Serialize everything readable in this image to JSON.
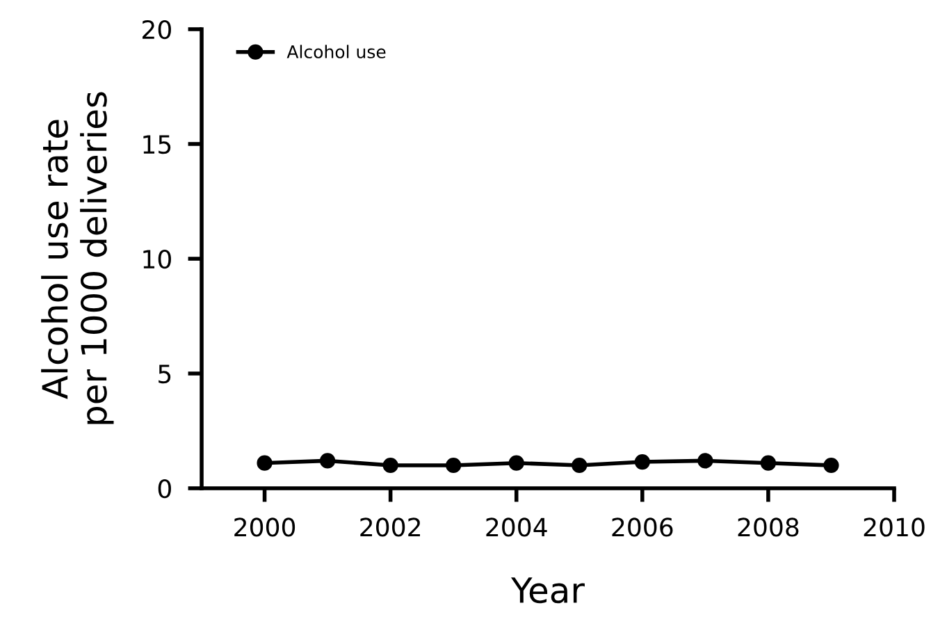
{
  "chart_data": {
    "type": "line",
    "xlabel": "Year",
    "ylabel": "Alcohol use rate\nper 1000 deliveries",
    "x": [
      2000,
      2001,
      2002,
      2003,
      2004,
      2005,
      2006,
      2007,
      2008,
      2009
    ],
    "series": [
      {
        "name": "Alcohol use",
        "color": "#000000",
        "values": [
          1.1,
          1.2,
          1.0,
          1.0,
          1.1,
          1.0,
          1.15,
          1.2,
          1.1,
          1.0
        ]
      }
    ],
    "xlim": [
      1999,
      2010
    ],
    "xticks": [
      2000,
      2002,
      2004,
      2006,
      2008,
      2010
    ],
    "ylim": [
      0,
      20
    ],
    "yticks": [
      0,
      5,
      10,
      15,
      20
    ],
    "marker": "circle",
    "line_style": "solid",
    "legend": "top left",
    "grid": false
  }
}
